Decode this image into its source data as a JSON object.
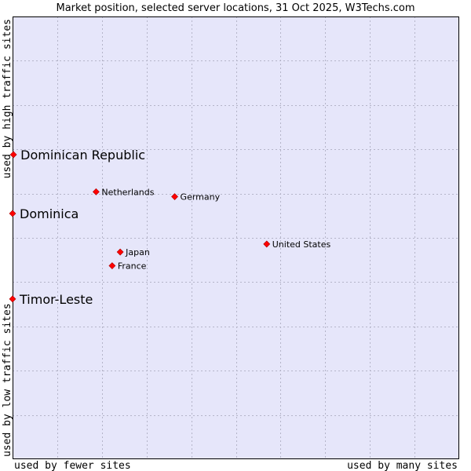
{
  "chart_data": {
    "type": "scatter",
    "title": "Market position, selected server locations, 31 Oct 2025, W3Techs.com",
    "xlabel_low": "used by fewer sites",
    "xlabel_high": "used by many sites",
    "ylabel_low": "used by low traffic sites",
    "ylabel_high": "used by high traffic sites",
    "xlim": [
      0,
      100
    ],
    "ylim": [
      0,
      100
    ],
    "grid": true,
    "colors": {
      "plot_bg": "#e6e6fa",
      "grid": "#b4b4c8",
      "border": "#000000",
      "marker": "#ff0000",
      "marker_edge": "#aa0000"
    },
    "points": [
      {
        "label": "Dominican Republic",
        "x": 0.2,
        "y": 68.8,
        "emphasis": true
      },
      {
        "label": "Dominica",
        "x": 0.0,
        "y": 55.5,
        "emphasis": true
      },
      {
        "label": "Timor-Leste",
        "x": 0.0,
        "y": 36.2,
        "emphasis": true
      },
      {
        "label": "Netherlands",
        "x": 18.7,
        "y": 60.4,
        "emphasis": false
      },
      {
        "label": "Germany",
        "x": 36.3,
        "y": 59.3,
        "emphasis": false
      },
      {
        "label": "United States",
        "x": 56.9,
        "y": 48.6,
        "emphasis": false
      },
      {
        "label": "Japan",
        "x": 24.1,
        "y": 46.8,
        "emphasis": false
      },
      {
        "label": "France",
        "x": 22.3,
        "y": 43.7,
        "emphasis": false
      }
    ]
  }
}
